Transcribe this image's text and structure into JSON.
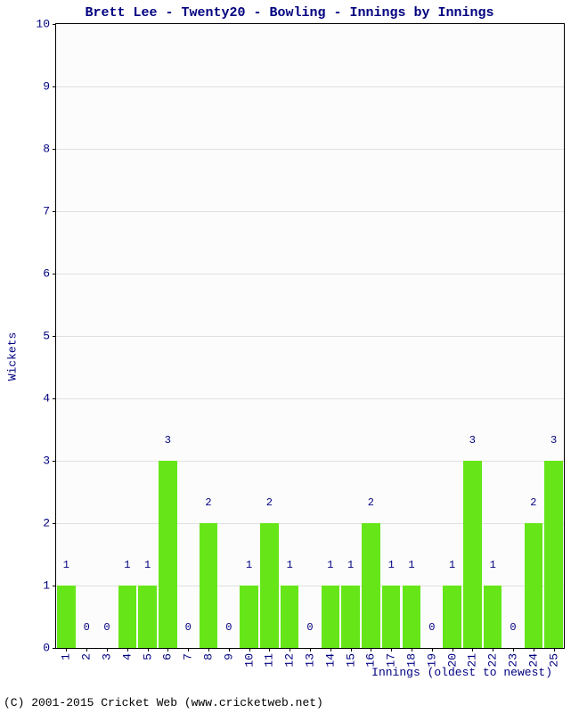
{
  "chart": {
    "type": "bar",
    "title": "Brett Lee - Twenty20 - Bowling - Innings by Innings",
    "title_fontsize": 15,
    "title_color": "#000080",
    "background_color": "#ffffff",
    "plot_background": "#fcfcfc",
    "grid_color": "#e0e0e0",
    "axis_color": "#000000",
    "label_color": "#000080",
    "label_fontsize": 13,
    "value_label_fontsize": 12,
    "y_axis_title": "Wickets",
    "x_axis_title": "Innings (oldest to newest)",
    "ylim": [
      0,
      10
    ],
    "ytick_step": 1,
    "categories": [
      "1",
      "2",
      "3",
      "4",
      "5",
      "6",
      "7",
      "8",
      "9",
      "10",
      "11",
      "12",
      "13",
      "14",
      "15",
      "16",
      "17",
      "18",
      "19",
      "20",
      "21",
      "22",
      "23",
      "24",
      "25"
    ],
    "values": [
      1,
      0,
      0,
      1,
      1,
      3,
      0,
      2,
      0,
      1,
      2,
      1,
      0,
      1,
      1,
      2,
      1,
      1,
      0,
      1,
      3,
      1,
      0,
      2,
      3
    ],
    "bar_color": "#66e619",
    "bar_width": 0.9,
    "copyright": "(C) 2001-2015 Cricket Web (www.cricketweb.net)"
  }
}
